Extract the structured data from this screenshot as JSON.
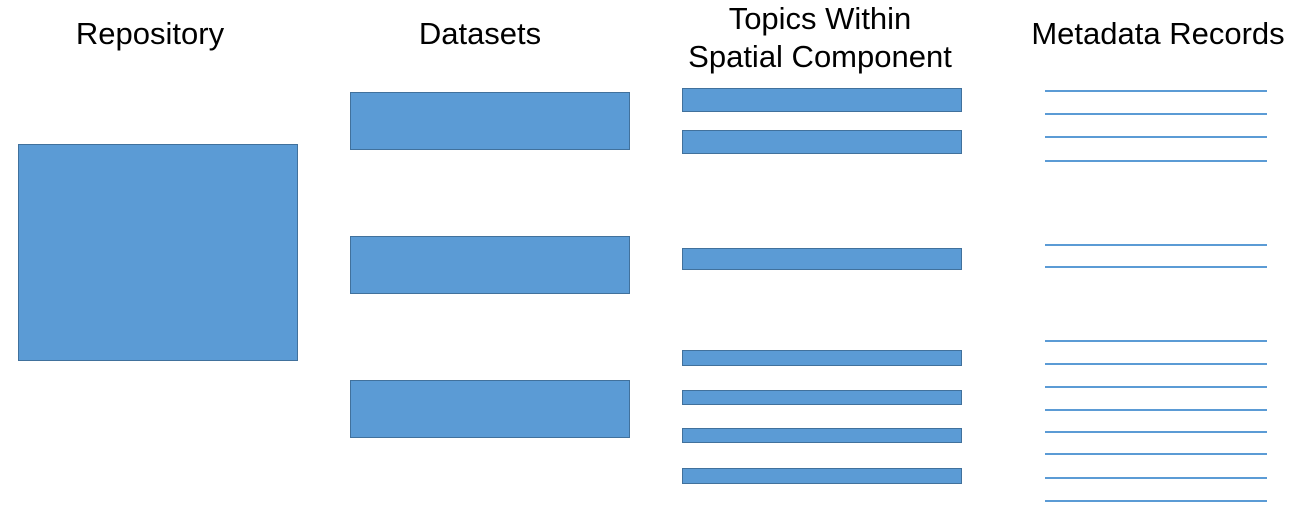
{
  "colors": {
    "fill": "#5b9bd5",
    "stroke": "#41719c",
    "line": "#5b9bd5"
  },
  "headings": {
    "repository": "Repository",
    "datasets": "Datasets",
    "topics": "Topics Within\nSpatial Component",
    "metadata": "Metadata Records"
  },
  "counts": {
    "repository": 1,
    "datasets": 3,
    "topics": 7,
    "metadata_records": 14
  }
}
